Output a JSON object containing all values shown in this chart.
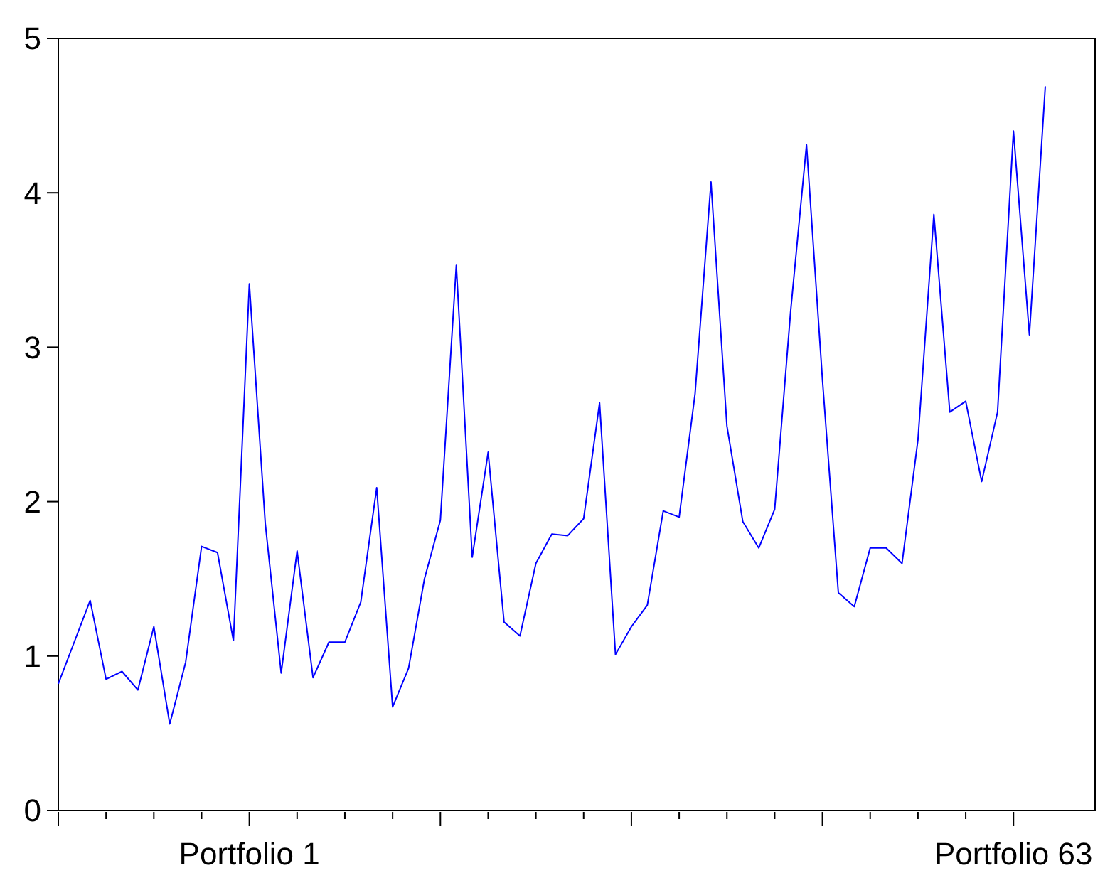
{
  "chart_data": {
    "type": "line",
    "categories": [
      null,
      null,
      null,
      null,
      null,
      null,
      null,
      null,
      null,
      null,
      null,
      null,
      "Portfolio 1",
      null,
      null,
      null,
      null,
      null,
      null,
      null,
      null,
      null,
      null,
      null,
      null,
      null,
      null,
      null,
      null,
      null,
      null,
      null,
      null,
      null,
      null,
      null,
      null,
      null,
      null,
      null,
      null,
      null,
      null,
      null,
      null,
      null,
      null,
      null,
      null,
      null,
      null,
      null,
      null,
      null,
      null,
      null,
      null,
      null,
      null,
      null,
      "Portfolio 63",
      null,
      null
    ],
    "series": [
      {
        "color": "#0000ff",
        "values": [
          0.82,
          1.09,
          1.36,
          0.85,
          0.9,
          0.78,
          1.19,
          0.56,
          0.96,
          1.71,
          1.67,
          1.1,
          3.41,
          1.86,
          0.89,
          1.68,
          0.86,
          1.09,
          1.09,
          1.35,
          2.09,
          0.67,
          0.92,
          1.5,
          1.88,
          3.53,
          1.64,
          2.32,
          1.22,
          1.13,
          1.6,
          1.79,
          1.78,
          1.89,
          2.64,
          1.01,
          1.19,
          1.33,
          1.94,
          1.9,
          2.7,
          4.07,
          2.49,
          1.87,
          1.7,
          1.95,
          3.23,
          4.31,
          2.79,
          1.41,
          1.32,
          1.7,
          1.7,
          1.6,
          2.4,
          3.86,
          2.58,
          2.65,
          2.13,
          2.58,
          4.4,
          3.08,
          4.69
        ]
      }
    ],
    "ylim": [
      0,
      5
    ],
    "yticks": [
      0,
      1,
      2,
      3,
      4,
      5
    ],
    "grid": false,
    "marker": "none",
    "line_style": "solid"
  }
}
